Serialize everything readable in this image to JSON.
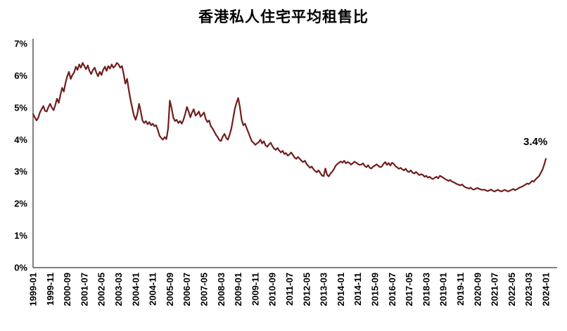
{
  "page": {
    "background": "#ffffff"
  },
  "chart_data": {
    "type": "line",
    "title": "香港私人住宅平均租售比",
    "line_color": "#701E1E",
    "axis_color": "#000000",
    "grid": false,
    "legend": "none",
    "ylim": [
      0,
      7
    ],
    "ytick_labels": [
      "0%",
      "1%",
      "2%",
      "3%",
      "4%",
      "5%",
      "6%",
      "7%"
    ],
    "x_start": "1999-01",
    "x_end": "2024-01",
    "frequency": "monthly",
    "x_tick_interval_months": 10,
    "x_tick_labels": [
      "1999-01",
      "1999-11",
      "2000-09",
      "2001-07",
      "2002-05",
      "2003-03",
      "2004-01",
      "2004-11",
      "2005-09",
      "2006-07",
      "2007-05",
      "2008-03",
      "2009-01",
      "2009-11",
      "2010-09",
      "2011-07",
      "2012-05",
      "2013-03",
      "2014-01",
      "2014-11",
      "2015-09",
      "2016-07",
      "2017-05",
      "2018-03",
      "2019-01",
      "2019-11",
      "2020-09",
      "2021-07",
      "2022-05",
      "2023-03",
      "2024-01"
    ],
    "values": [
      4.8,
      4.7,
      4.6,
      4.68,
      4.85,
      4.95,
      5.05,
      4.9,
      4.88,
      5.02,
      5.12,
      5.0,
      4.92,
      5.08,
      5.28,
      5.15,
      5.4,
      5.62,
      5.5,
      5.78,
      5.98,
      6.12,
      5.9,
      6.02,
      6.1,
      6.28,
      6.18,
      6.35,
      6.25,
      6.4,
      6.3,
      6.2,
      6.32,
      6.15,
      6.05,
      6.18,
      6.25,
      6.1,
      5.98,
      6.12,
      6.02,
      6.18,
      6.28,
      6.15,
      6.3,
      6.22,
      6.35,
      6.25,
      6.3,
      6.4,
      6.35,
      6.25,
      6.3,
      6.05,
      5.75,
      5.9,
      5.55,
      5.25,
      5.0,
      4.75,
      4.62,
      4.8,
      5.12,
      4.88,
      4.6,
      4.52,
      4.58,
      4.48,
      4.55,
      4.45,
      4.5,
      4.42,
      4.45,
      4.3,
      4.12,
      4.05,
      4.0,
      4.08,
      4.02,
      4.35,
      5.22,
      5.0,
      4.7,
      4.58,
      4.62,
      4.52,
      4.58,
      4.5,
      4.62,
      4.8,
      5.02,
      4.88,
      4.7,
      4.85,
      4.95,
      4.75,
      4.8,
      4.88,
      4.72,
      4.78,
      4.85,
      4.65,
      4.55,
      4.6,
      4.42,
      4.35,
      4.25,
      4.15,
      4.08,
      3.98,
      3.96,
      4.1,
      4.18,
      4.05,
      4.0,
      4.15,
      4.35,
      4.65,
      4.95,
      5.15,
      5.3,
      5.02,
      4.62,
      4.45,
      4.5,
      4.35,
      4.22,
      4.08,
      3.95,
      3.9,
      3.84,
      3.88,
      3.92,
      4.0,
      3.88,
      3.95,
      3.82,
      3.78,
      3.85,
      3.9,
      3.8,
      3.72,
      3.68,
      3.74,
      3.66,
      3.6,
      3.65,
      3.55,
      3.58,
      3.5,
      3.54,
      3.6,
      3.52,
      3.44,
      3.4,
      3.46,
      3.4,
      3.34,
      3.3,
      3.34,
      3.24,
      3.18,
      3.12,
      3.16,
      3.08,
      3.02,
      2.98,
      3.04,
      2.96,
      2.88,
      2.86,
      3.1,
      2.9,
      2.85,
      2.94,
      3.0,
      3.08,
      3.18,
      3.24,
      3.28,
      3.32,
      3.28,
      3.34,
      3.26,
      3.3,
      3.27,
      3.22,
      3.26,
      3.31,
      3.28,
      3.24,
      3.21,
      3.22,
      3.26,
      3.18,
      3.14,
      3.2,
      3.12,
      3.1,
      3.16,
      3.19,
      3.23,
      3.18,
      3.14,
      3.16,
      3.24,
      3.3,
      3.21,
      3.27,
      3.19,
      3.28,
      3.24,
      3.17,
      3.13,
      3.09,
      3.12,
      3.07,
      3.04,
      3.09,
      3.01,
      2.99,
      3.04,
      2.97,
      2.94,
      2.99,
      2.94,
      2.89,
      2.92,
      2.9,
      2.84,
      2.87,
      2.81,
      2.84,
      2.79,
      2.77,
      2.81,
      2.84,
      2.79,
      2.87,
      2.84,
      2.81,
      2.77,
      2.74,
      2.71,
      2.74,
      2.69,
      2.67,
      2.64,
      2.61,
      2.59,
      2.57,
      2.6,
      2.54,
      2.51,
      2.49,
      2.47,
      2.5,
      2.45,
      2.44,
      2.47,
      2.49,
      2.46,
      2.44,
      2.43,
      2.44,
      2.41,
      2.39,
      2.42,
      2.44,
      2.4,
      2.38,
      2.41,
      2.43,
      2.4,
      2.38,
      2.41,
      2.43,
      2.4,
      2.38,
      2.41,
      2.43,
      2.46,
      2.42,
      2.45,
      2.48,
      2.51,
      2.53,
      2.56,
      2.59,
      2.63,
      2.61,
      2.66,
      2.71,
      2.69,
      2.76,
      2.81,
      2.86,
      2.96,
      3.06,
      3.22,
      3.4
    ],
    "annotation": {
      "text": "3.4%",
      "attached_to": "last-point"
    }
  }
}
